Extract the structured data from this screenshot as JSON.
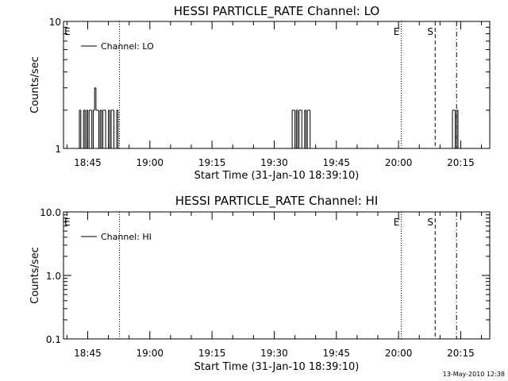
{
  "timestamp": "13-May-2010 12:38",
  "chart_data": [
    {
      "type": "line",
      "title": "HESSI PARTICLE_RATE Channel: LO",
      "xlabel": "Start Time (31-Jan-10 18:39:10)",
      "ylabel": "Counts/sec",
      "y_scale": "log",
      "ylim": [
        1,
        10
      ],
      "y_ticks": [
        1,
        10
      ],
      "y_tick_labels": [
        "1",
        "10"
      ],
      "xlim": [
        "18:39:10",
        "20:22:00"
      ],
      "x_tick_labels": [
        "18:45",
        "19:00",
        "19:15",
        "19:30",
        "19:45",
        "20:00",
        "20:15"
      ],
      "legend": "top-left",
      "series": [
        {
          "name": "Channel: LO",
          "x": [
            "18:42:40",
            "18:43:00",
            "18:43:20",
            "18:43:40",
            "18:44:00",
            "18:44:20",
            "18:44:40",
            "18:45:00",
            "18:45:20",
            "18:45:40",
            "18:46:00",
            "18:46:20",
            "18:46:40",
            "18:47:00",
            "18:47:20",
            "18:47:40",
            "18:48:00",
            "18:48:20",
            "18:48:40",
            "18:49:00",
            "18:49:20",
            "18:49:40",
            "18:50:00",
            "18:50:20",
            "18:50:40",
            "18:51:00",
            "18:51:20",
            "18:51:40",
            "18:52:00",
            "18:52:20",
            "19:34:00",
            "19:34:20",
            "19:34:40",
            "19:35:00",
            "19:35:20",
            "19:35:40",
            "19:36:00",
            "19:36:20",
            "19:36:40",
            "19:37:00",
            "19:37:20",
            "19:37:40",
            "19:38:00",
            "19:38:20",
            "19:38:40",
            "19:39:00",
            "20:12:40",
            "20:13:00",
            "20:13:20",
            "20:13:40",
            "20:14:00",
            "20:14:20",
            "20:14:40"
          ],
          "y": [
            1,
            2,
            1,
            1,
            2,
            1,
            2,
            1,
            2,
            2,
            1,
            2,
            3,
            2,
            2,
            1,
            2,
            1,
            2,
            2,
            1,
            1,
            2,
            1,
            2,
            2,
            1,
            1,
            2,
            1,
            1,
            2,
            2,
            1,
            2,
            1,
            2,
            2,
            1,
            1,
            2,
            1,
            2,
            2,
            1,
            1,
            1,
            2,
            2,
            1,
            2,
            1,
            1
          ]
        }
      ],
      "markers": [
        {
          "time": "18:52:40",
          "style": "dotted",
          "label": ""
        },
        {
          "time": "20:00:40",
          "style": "dotted",
          "label": "E"
        },
        {
          "time": "20:08:50",
          "style": "dashed",
          "label": "S"
        },
        {
          "time": "20:14:00",
          "style": "dash-dot",
          "label": ""
        }
      ],
      "left_marker_label": "E"
    },
    {
      "type": "line",
      "title": "HESSI PARTICLE_RATE Channel: HI",
      "xlabel": "Start Time (31-Jan-10 18:39:10)",
      "ylabel": "Counts/sec",
      "y_scale": "log",
      "ylim": [
        0.1,
        10
      ],
      "y_ticks": [
        0.1,
        1,
        10
      ],
      "y_tick_labels": [
        "0.1",
        "1.0",
        "10.0"
      ],
      "xlim": [
        "18:39:10",
        "20:22:00"
      ],
      "x_tick_labels": [
        "18:45",
        "19:00",
        "19:15",
        "19:30",
        "19:45",
        "20:00",
        "20:15"
      ],
      "legend": "top-left",
      "series": [
        {
          "name": "Channel: HI",
          "x": [],
          "y": []
        }
      ],
      "markers": [
        {
          "time": "18:52:40",
          "style": "dotted",
          "label": ""
        },
        {
          "time": "20:00:40",
          "style": "dotted",
          "label": "E"
        },
        {
          "time": "20:08:50",
          "style": "dashed",
          "label": "S"
        },
        {
          "time": "20:14:00",
          "style": "dash-dot",
          "label": ""
        }
      ],
      "left_marker_label": "E"
    }
  ]
}
